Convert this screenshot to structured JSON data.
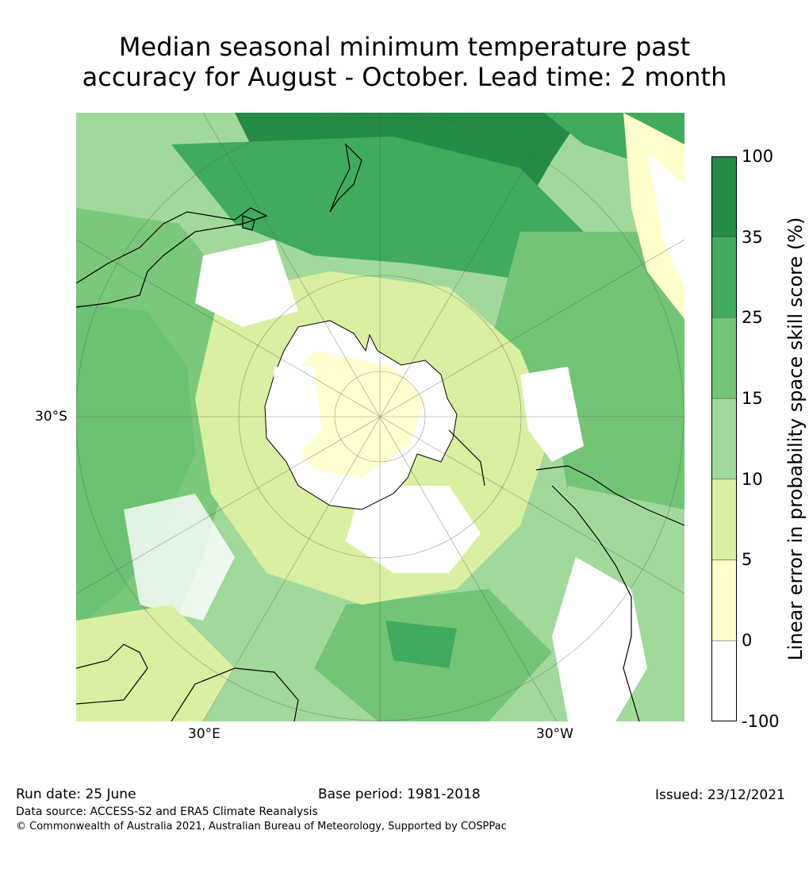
{
  "title": {
    "line1": "Median seasonal minimum temperature past",
    "line2": "accuracy for August - October. Lead time: 2 month"
  },
  "map": {
    "projection": "south-polar-stereographic",
    "lat_label": "30°S",
    "lon_labels": [
      "30°E",
      "30°W"
    ],
    "ocean_fill": "#ffffff",
    "coast_color": "#000000"
  },
  "colorbar": {
    "label": "Linear error in probability space skill score (%)",
    "ticks": [
      "100",
      "35",
      "25",
      "15",
      "10",
      "5",
      "0",
      "-100"
    ],
    "bins": [
      {
        "range": "35 to 100",
        "color": "#238b45"
      },
      {
        "range": "25 to 35",
        "color": "#41ab5d"
      },
      {
        "range": "15 to 25",
        "color": "#74c476"
      },
      {
        "range": "10 to 15",
        "color": "#a1d99b"
      },
      {
        "range": "5 to 10",
        "color": "#d9f0a3"
      },
      {
        "range": "0 to 5",
        "color": "#ffffcc"
      },
      {
        "range": "-100 to 0",
        "color": "#ffffff"
      }
    ]
  },
  "footer": {
    "run_date": "Run date: 25 June",
    "base_period": "Base period: 1981-2018",
    "issued": "Issued: 23/12/2021",
    "data_source": "Data source: ACCESS-S2 and ERA5 Climate Reanalysis",
    "copyright": "© Commonwealth of Australia 2021, Australian Bureau of Meteorology, Supported by COSPPac"
  }
}
